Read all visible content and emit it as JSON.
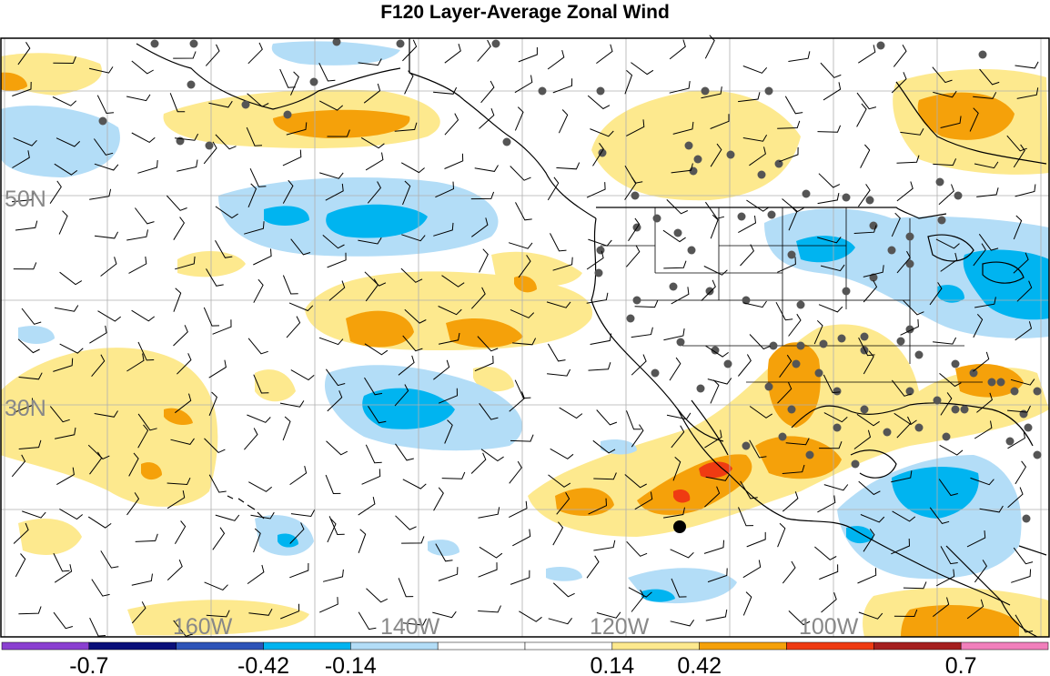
{
  "title": "F120 Layer-Average Zonal Wind",
  "lat_labels": [
    {
      "text": "50N"
    },
    {
      "text": "30N"
    }
  ],
  "lon_labels": [
    {
      "text": "160W"
    },
    {
      "text": "140W"
    },
    {
      "text": "120W"
    },
    {
      "text": "100W"
    }
  ],
  "colorbar": {
    "colors": [
      "#8a3fd1",
      "#0a0f7a",
      "#2d53b8",
      "#00b4f0",
      "#b3ddf7",
      "#ffffff",
      "#ffffff",
      "#fde98e",
      "#f5a10a",
      "#ef3b12",
      "#a51f1f",
      "#f17fbc"
    ],
    "tick_labels": [
      "-0.7",
      "-0.42",
      "-0.14",
      "0.14",
      "0.42",
      "0.7"
    ]
  },
  "colors": {
    "light_yellow": "#fde98e",
    "orange": "#f5a10a",
    "red": "#ef3b12",
    "light_blue": "#b3ddf7",
    "blue": "#00b4f0",
    "station": "#555555",
    "grid": "#b0b0b0",
    "coast": "#000000"
  }
}
